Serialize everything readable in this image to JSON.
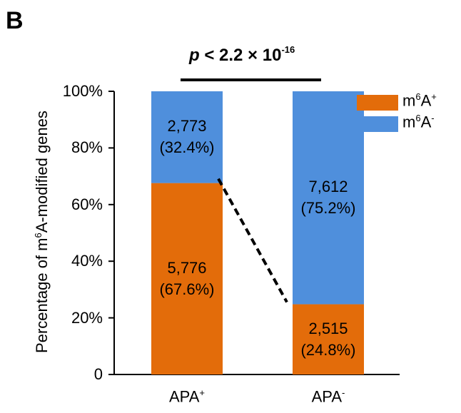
{
  "panel_label": "B",
  "significance": {
    "p_label": "p",
    "text": "< 2.2 × 10",
    "exponent": "-16"
  },
  "colors": {
    "m6a_pos": "#e36c0a",
    "m6a_neg": "#4f8fdc"
  },
  "chart_data": {
    "type": "bar",
    "stacked": true,
    "ylabel": {
      "text": "Percentage of m",
      "sup": "6",
      "rest": "A-modified genes"
    },
    "ylim": [
      0,
      100
    ],
    "yticks": [
      "0",
      "20%",
      "40%",
      "60%",
      "80%",
      "100%"
    ],
    "categories": [
      {
        "name": "APA",
        "sup": "+"
      },
      {
        "name": "APA",
        "sup": "-"
      }
    ],
    "series": [
      {
        "name": "m6A+",
        "legend_base": "m",
        "legend_sup": "6",
        "legend_rest": "A",
        "legend_sup2": "+",
        "values": [
          67.6,
          24.8
        ],
        "counts": [
          "5,776",
          "2,515"
        ],
        "percents": [
          "(67.6%)",
          "(24.8%)"
        ]
      },
      {
        "name": "m6A-",
        "legend_base": "m",
        "legend_sup": "6",
        "legend_rest": "A",
        "legend_sup2": "-",
        "values": [
          32.4,
          75.2
        ],
        "counts": [
          "2,773",
          "7,612"
        ],
        "percents": [
          "(32.4%)",
          "(75.2%)"
        ]
      }
    ]
  }
}
